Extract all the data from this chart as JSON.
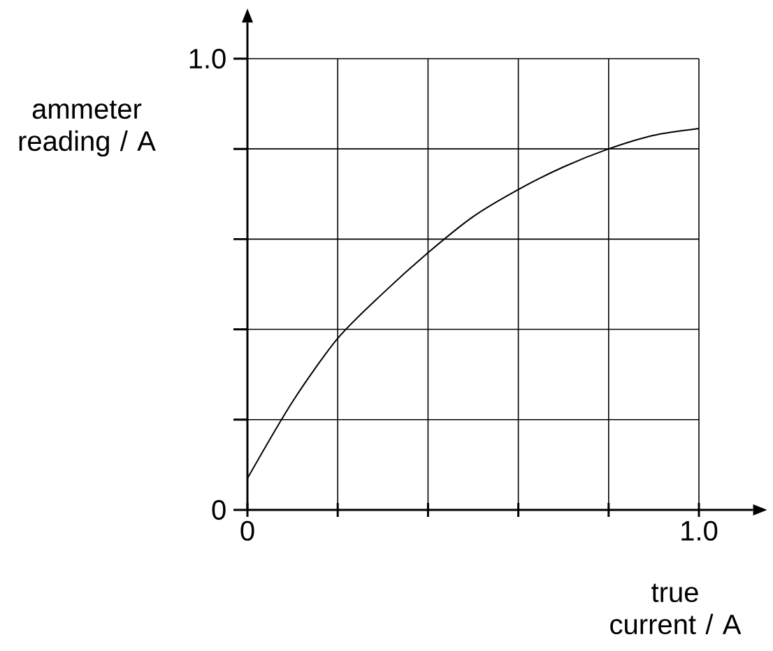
{
  "chart_data": {
    "type": "line",
    "xlabel": "true current / A",
    "ylabel": "ammeter reading / A",
    "x": [
      0,
      0.1,
      0.2,
      0.3,
      0.4,
      0.5,
      0.6,
      0.7,
      0.8,
      0.9,
      1.0
    ],
    "series": [
      {
        "color": "#000000",
        "values": [
          0.07,
          0.24,
          0.38,
          0.48,
          0.57,
          0.65,
          0.71,
          0.76,
          0.8,
          0.83,
          0.845
        ]
      }
    ],
    "xlim": [
      0,
      1.12
    ],
    "ylim": [
      0,
      1.08
    ],
    "xticks": [
      {
        "value": 0,
        "label": "0"
      },
      {
        "value": 0.2,
        "label": null
      },
      {
        "value": 0.4,
        "label": null
      },
      {
        "value": 0.6,
        "label": null
      },
      {
        "value": 0.8,
        "label": null
      },
      {
        "value": 1.0,
        "label": "1.0"
      }
    ],
    "yticks": [
      {
        "value": 0,
        "label": "0"
      },
      {
        "value": 0.2,
        "label": null
      },
      {
        "value": 0.4,
        "label": null
      },
      {
        "value": 0.6,
        "label": null
      },
      {
        "value": 0.8,
        "label": null
      },
      {
        "value": 1.0,
        "label": "1.0"
      }
    ],
    "grid": true,
    "marker": "none",
    "line_style": "solid"
  }
}
